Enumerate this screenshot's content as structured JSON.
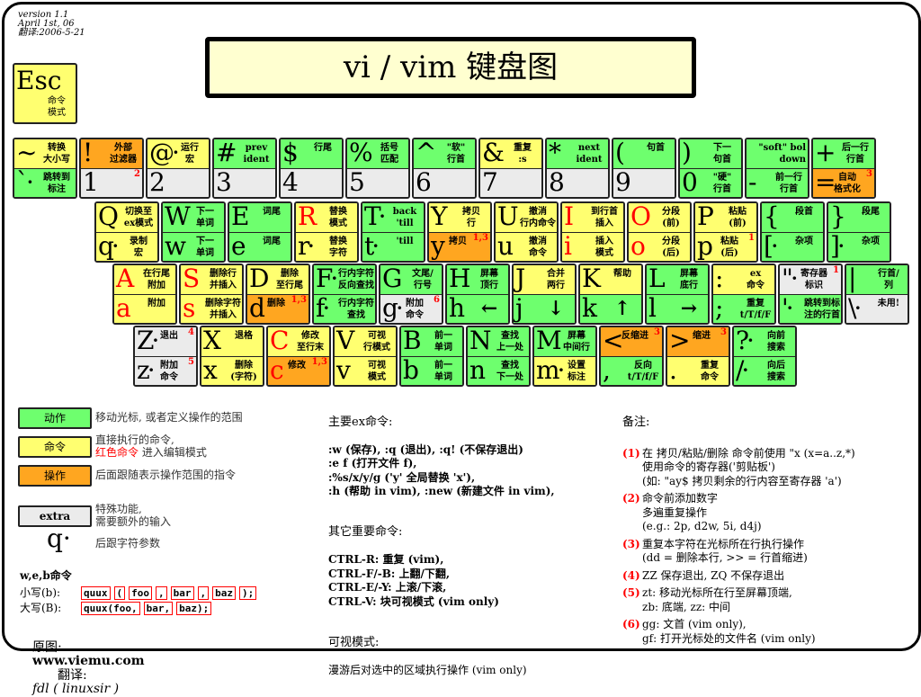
{
  "version": {
    "line1": "version 1.1",
    "line2": "April 1st, 06",
    "line3": "翻译:2006-5-21"
  },
  "title": "vi / vim 键盘图",
  "esc": {
    "char": "Esc",
    "desc": "命令\n模式"
  },
  "colors": {
    "motion": "#6eff6e",
    "command": "#ffff70",
    "operator": "#ffa620",
    "extra": "#ebebeb",
    "red": "#ff0000"
  },
  "rows": [
    [
      {
        "t": {
          "c": "~",
          "cl": "y",
          "d": "转换\n大小写"
        },
        "b": {
          "c": "`·",
          "cl": "g",
          "d": "跳转到\n标注"
        }
      },
      {
        "t": {
          "c": "!",
          "cl": "o",
          "d": "外部\n过滤器"
        },
        "b": {
          "c": "1",
          "cl": "x",
          "d": "",
          "n": "2"
        }
      },
      {
        "t": {
          "c": "@·",
          "cl": "y",
          "d": "运行\n宏"
        },
        "b": {
          "c": "2",
          "cl": "x",
          "d": ""
        }
      },
      {
        "t": {
          "c": "#",
          "cl": "g",
          "d": "prev\nident"
        },
        "b": {
          "c": "3",
          "cl": "x",
          "d": ""
        }
      },
      {
        "t": {
          "c": "$",
          "cl": "g",
          "d": "行尾"
        },
        "b": {
          "c": "4",
          "cl": "x",
          "d": ""
        }
      },
      {
        "t": {
          "c": "%",
          "cl": "g",
          "d": "括号\n匹配"
        },
        "b": {
          "c": "5",
          "cl": "x",
          "d": ""
        }
      },
      {
        "t": {
          "c": "^",
          "cl": "g",
          "d": "\"软\"\n行首"
        },
        "b": {
          "c": "6",
          "cl": "x",
          "d": ""
        }
      },
      {
        "t": {
          "c": "&",
          "cl": "y",
          "d": "重复\n:s"
        },
        "b": {
          "c": "7",
          "cl": "x",
          "d": ""
        }
      },
      {
        "t": {
          "c": "*",
          "cl": "g",
          "d": "next\nident"
        },
        "b": {
          "c": "8",
          "cl": "x",
          "d": ""
        }
      },
      {
        "t": {
          "c": "(",
          "cl": "g",
          "d": "句首"
        },
        "b": {
          "c": "9",
          "cl": "x",
          "d": ""
        }
      },
      {
        "t": {
          "c": ")",
          "cl": "g",
          "d": "下一\n句首"
        },
        "b": {
          "c": "0",
          "cl": "g",
          "d": "\"硬\"\n行首"
        }
      },
      {
        "t": {
          "c": "_",
          "cl": "g",
          "d": "\"soft\" bol\ndown"
        },
        "b": {
          "c": "-",
          "cl": "g",
          "d": "前一行\n行首"
        }
      },
      {
        "t": {
          "c": "+",
          "cl": "g",
          "d": "后一行\n行首"
        },
        "b": {
          "c": "=",
          "cl": "o",
          "d": "自动\n格式化",
          "n": "3"
        }
      }
    ],
    [
      {
        "t": {
          "c": "Q",
          "cl": "y",
          "d": "切换至\nex模式"
        },
        "b": {
          "c": "q·",
          "cl": "y",
          "d": "录制\n宏"
        }
      },
      {
        "t": {
          "c": "W",
          "cl": "g",
          "d": "下一\n单词"
        },
        "b": {
          "c": "w",
          "cl": "g",
          "d": "下一\n单词"
        }
      },
      {
        "t": {
          "c": "E",
          "cl": "g",
          "d": "词尾"
        },
        "b": {
          "c": "e",
          "cl": "g",
          "d": "词尾"
        }
      },
      {
        "t": {
          "c": "R",
          "cl": "y",
          "r": true,
          "d": "替换\n模式"
        },
        "b": {
          "c": "r·",
          "cl": "y",
          "d": "替换\n字符"
        }
      },
      {
        "t": {
          "c": "T·",
          "cl": "g",
          "d": "back\n'till"
        },
        "b": {
          "c": "t·",
          "cl": "g",
          "d": "'till"
        }
      },
      {
        "t": {
          "c": "Y",
          "cl": "y",
          "d": "拷贝\n行"
        },
        "b": {
          "c": "y",
          "cl": "o",
          "d": "拷贝",
          "n": "1,3"
        }
      },
      {
        "t": {
          "c": "U",
          "cl": "y",
          "d": "撤消\n行内命令"
        },
        "b": {
          "c": "u",
          "cl": "y",
          "d": "撤消\n命令"
        }
      },
      {
        "t": {
          "c": "I",
          "cl": "y",
          "r": true,
          "d": "到行首\n插入"
        },
        "b": {
          "c": "i",
          "cl": "y",
          "r": true,
          "d": "插入\n模式"
        }
      },
      {
        "t": {
          "c": "O",
          "cl": "y",
          "r": true,
          "d": "分段\n(前)"
        },
        "b": {
          "c": "o",
          "cl": "y",
          "r": true,
          "d": "分段\n(后)"
        }
      },
      {
        "t": {
          "c": "P",
          "cl": "y",
          "d": "粘贴\n(前)"
        },
        "b": {
          "c": "p",
          "cl": "y",
          "d": "粘贴\n(后)",
          "n": "1"
        }
      },
      {
        "t": {
          "c": "{",
          "cl": "g",
          "d": "段首"
        },
        "b": {
          "c": "[·",
          "cl": "g",
          "d": "杂项"
        }
      },
      {
        "t": {
          "c": "}",
          "cl": "g",
          "d": "段尾"
        },
        "b": {
          "c": "]·",
          "cl": "g",
          "d": "杂项"
        }
      }
    ],
    [
      {
        "t": {
          "c": "A",
          "cl": "y",
          "r": true,
          "d": "在行尾\n附加"
        },
        "b": {
          "c": "a",
          "cl": "y",
          "r": true,
          "d": "附加"
        }
      },
      {
        "t": {
          "c": "S",
          "cl": "y",
          "r": true,
          "d": "删除行\n并插入"
        },
        "b": {
          "c": "s",
          "cl": "y",
          "r": true,
          "d": "删除字符\n并插入"
        }
      },
      {
        "t": {
          "c": "D",
          "cl": "y",
          "d": "删除\n至行尾"
        },
        "b": {
          "c": "d",
          "cl": "o",
          "d": "删除",
          "n": "1,3"
        }
      },
      {
        "t": {
          "c": "F·",
          "cl": "g",
          "d": "行内字符\n反向查找"
        },
        "b": {
          "c": "f·",
          "cl": "g",
          "d": "行内字符\n查找"
        }
      },
      {
        "t": {
          "c": "G",
          "cl": "g",
          "d": "文尾/\n行号"
        },
        "b": {
          "c": "g·",
          "cl": "x",
          "d": "附加\n命令",
          "n": "6"
        }
      },
      {
        "t": {
          "c": "H",
          "cl": "g",
          "d": "屏幕\n顶行"
        },
        "b": {
          "c": "h",
          "cl": "g",
          "d": "←"
        }
      },
      {
        "t": {
          "c": "J",
          "cl": "y",
          "d": "合并\n两行"
        },
        "b": {
          "c": "j",
          "cl": "g",
          "d": "↓"
        }
      },
      {
        "t": {
          "c": "K",
          "cl": "y",
          "d": "帮助"
        },
        "b": {
          "c": "k",
          "cl": "g",
          "d": "↑"
        }
      },
      {
        "t": {
          "c": "L",
          "cl": "g",
          "d": "屏幕\n底行"
        },
        "b": {
          "c": "l",
          "cl": "g",
          "d": "→"
        }
      },
      {
        "t": {
          "c": ":",
          "cl": "y",
          "d": "ex\n命令"
        },
        "b": {
          "c": ";",
          "cl": "g",
          "d": "重复\nt/T/f/F"
        }
      },
      {
        "t": {
          "c": "\"·",
          "cl": "x",
          "d": "寄存器\n标识",
          "n": "1"
        },
        "b": {
          "c": "'·",
          "cl": "g",
          "d": "跳转到标\n注的行首"
        }
      },
      {
        "t": {
          "c": "|",
          "cl": "g",
          "d": "行首/\n列"
        },
        "b": {
          "c": "\\·",
          "cl": "x",
          "d": "未用!"
        }
      }
    ],
    [
      {
        "t": {
          "c": "Z·",
          "cl": "x",
          "d": "退出",
          "n": "4"
        },
        "b": {
          "c": "z·",
          "cl": "x",
          "d": "附加\n命令",
          "n": "5"
        }
      },
      {
        "t": {
          "c": "X",
          "cl": "y",
          "d": "退格"
        },
        "b": {
          "c": "x",
          "cl": "y",
          "d": "删除\n(字符)"
        }
      },
      {
        "t": {
          "c": "C",
          "cl": "y",
          "r": true,
          "d": "修改\n至行末"
        },
        "b": {
          "c": "c",
          "cl": "o",
          "r": true,
          "d": "修改",
          "n": "1,3"
        }
      },
      {
        "t": {
          "c": "V",
          "cl": "y",
          "d": "可视\n行模式"
        },
        "b": {
          "c": "v",
          "cl": "y",
          "d": "可视\n模式"
        }
      },
      {
        "t": {
          "c": "B",
          "cl": "g",
          "d": "前一\n单词"
        },
        "b": {
          "c": "b",
          "cl": "g",
          "d": "前一\n单词"
        }
      },
      {
        "t": {
          "c": "N",
          "cl": "g",
          "d": "查找\n上一处"
        },
        "b": {
          "c": "n",
          "cl": "g",
          "d": "查找\n下一处"
        }
      },
      {
        "t": {
          "c": "M",
          "cl": "g",
          "d": "屏幕\n中间行"
        },
        "b": {
          "c": "m·",
          "cl": "y",
          "d": "设置\n标注"
        }
      },
      {
        "t": {
          "c": "<",
          "cl": "o",
          "d": "反缩进",
          "n": "3"
        },
        "b": {
          "c": ",",
          "cl": "g",
          "d": "反向\nt/T/f/F"
        }
      },
      {
        "t": {
          "c": ">",
          "cl": "o",
          "d": "缩进",
          "n": "3"
        },
        "b": {
          "c": ".",
          "cl": "y",
          "d": "重复\n命令"
        }
      },
      {
        "t": {
          "c": "?·",
          "cl": "g",
          "d": "向前\n搜索"
        },
        "b": {
          "c": "/·",
          "cl": "g",
          "d": "向后\n搜索"
        }
      }
    ]
  ],
  "legend": {
    "motion": {
      "label": "动作",
      "desc": "移动光标, 或者定义操作的范围"
    },
    "command": {
      "label": "命令",
      "desc": "直接执行的命令,",
      "desc_red": "红色命令",
      "desc_tail": " 进入编辑模式"
    },
    "operator": {
      "label": "操作",
      "desc": "后面跟随表示操作范围的指令"
    },
    "extra": {
      "label": "extra",
      "desc": "特殊功能,\n需要额外的输入"
    },
    "arg": {
      "label": "q·",
      "desc": "后跟字符参数"
    }
  },
  "web": {
    "title": "w,e,b命令",
    "lower_label": "小写(b):",
    "upper_label": "大写(B):",
    "lower_tokens": [
      "quux",
      "(",
      "foo",
      ",",
      "bar",
      ",",
      "baz",
      ");"
    ],
    "upper_tokens": [
      "quux(foo,",
      "bar,",
      "baz);"
    ]
  },
  "footer": {
    "orig_label": "原图:",
    "orig": "www.viemu.com",
    "trans_label": "翻译:",
    "trans": "fdl ( linuxsir )"
  },
  "ex": {
    "title": "主要ex命令:",
    "lines": ":w (保存), :q (退出), :q! (不保存退出)\n:e f (打开文件 f),\n:%s/x/y/g ('y' 全局替换 'x'),\n:h (帮助 in vim), :new (新建文件 in vim),"
  },
  "other": {
    "title": "其它重要命令:",
    "lines": "CTRL-R: 重复 (vim),\nCTRL-F/-B: 上翻/下翻,\nCTRL-E/-Y: 上滚/下滚,\nCTRL-V: 块可视模式 (vim only)"
  },
  "visual": {
    "title": "可视模式:",
    "lines": "漫游后对选中的区域执行操作 (vim only)"
  },
  "notes": {
    "title": "备注:",
    "items": [
      {
        "n": "(1)",
        "t": "在 拷贝/粘贴/删除 命令前使用 \"x (x=a..z,*)\n使用命令的寄存器('剪贴板')\n(如: \"ay$ 拷贝剩余的行内容至寄存器 'a')"
      },
      {
        "n": "(2)",
        "t": "命令前添加数字\n多遍重复操作\n(e.g.: 2p, d2w, 5i, d4j)"
      },
      {
        "n": "(3)",
        "t": "重复本字符在光标所在行执行操作\n(dd = 删除本行, >> = 行首缩进)"
      },
      {
        "n": "(4)",
        "t": "ZZ 保存退出, ZQ 不保存退出"
      },
      {
        "n": "(5)",
        "t": "zt: 移动光标所在行至屏幕顶端,\nzb: 底端, zz: 中间"
      },
      {
        "n": "(6)",
        "t": "gg: 文首 (vim only),\ngf: 打开光标处的文件名 (vim only)"
      }
    ]
  }
}
